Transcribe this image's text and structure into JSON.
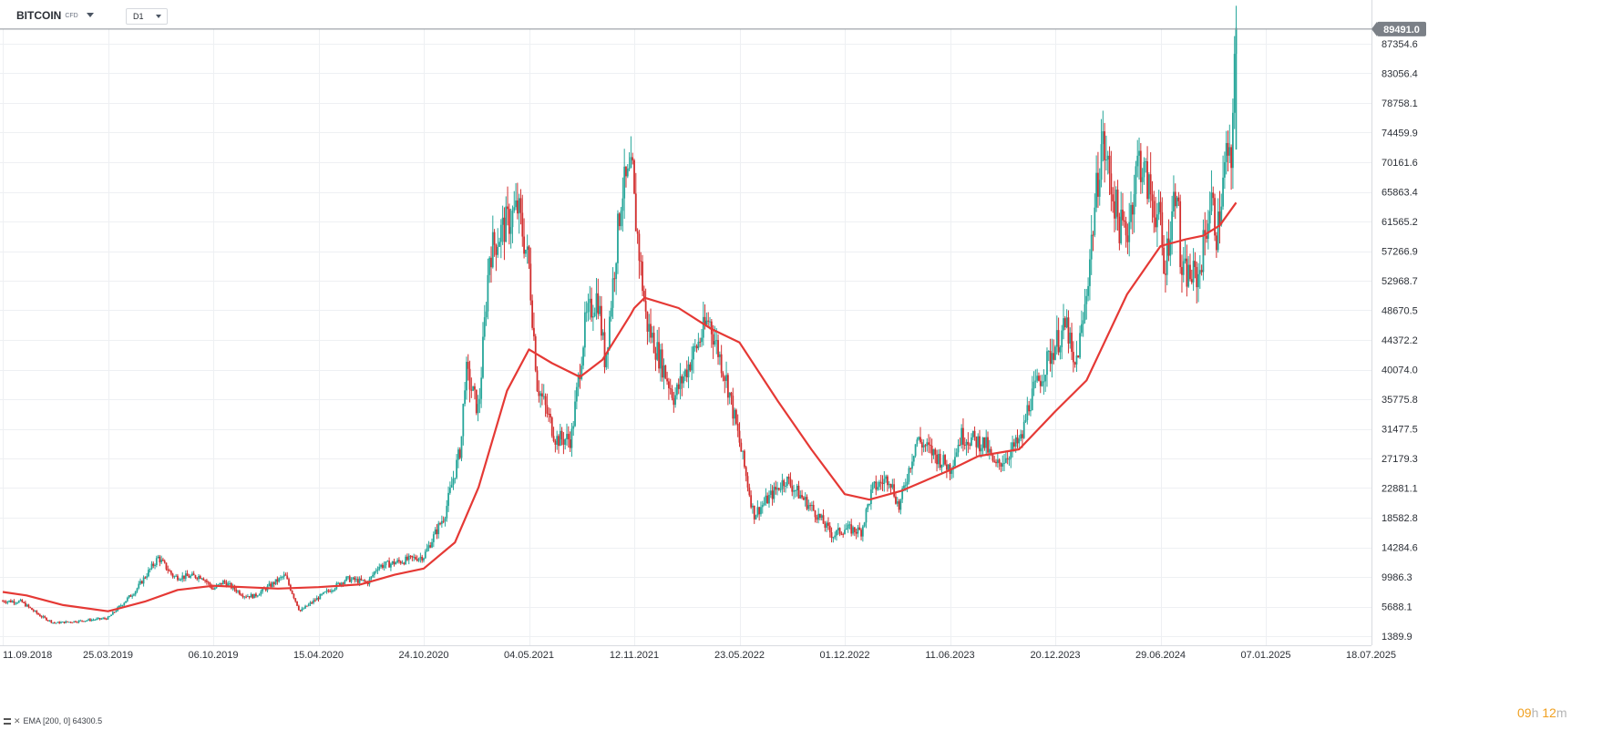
{
  "header": {
    "symbol": "BITCOIN",
    "symbol_tag": "CFD",
    "timeframe": "D1"
  },
  "indicator": {
    "label": "EMA [200, 0] 64300.5"
  },
  "countdown": {
    "hours": "09",
    "hours_unit": "h",
    "minutes": "12",
    "minutes_unit": "m"
  },
  "colors": {
    "up": "#26a69a",
    "down": "#d32f2f",
    "ema": "#e53935",
    "price_tag": "#7b8087",
    "grid": "#eef0f3"
  },
  "chart_data": {
    "type": "candlestick",
    "title": "",
    "grid": true,
    "ylim": [
      1389.9,
      91000
    ],
    "y_ticks": [
      "87354.6",
      "83056.4",
      "78758.1",
      "74459.9",
      "70161.6",
      "65863.4",
      "61565.2",
      "57266.9",
      "52968.7",
      "48670.5",
      "44372.2",
      "40074.0",
      "35775.8",
      "31477.5",
      "27179.3",
      "22881.1",
      "18582.8",
      "14284.6",
      "9986.3",
      "5688.1",
      "1389.9"
    ],
    "x_ticks": [
      "11.09.2018",
      "25.03.2019",
      "06.10.2019",
      "15.04.2020",
      "24.10.2020",
      "04.05.2021",
      "12.11.2021",
      "23.05.2022",
      "01.12.2022",
      "11.06.2023",
      "20.12.2023",
      "29.06.2024",
      "07.01.2025",
      "18.07.2025"
    ],
    "last_price": "89491.0",
    "price_path": [
      [
        "11.09.2018",
        6500
      ],
      [
        "15.10.2018",
        6400
      ],
      [
        "20.11.2018",
        4300
      ],
      [
        "15.12.2018",
        3300
      ],
      [
        "25.01.2019",
        3550
      ],
      [
        "25.03.2019",
        4000
      ],
      [
        "15.05.2019",
        8000
      ],
      [
        "26.06.2019",
        12800
      ],
      [
        "25.07.2019",
        10000
      ],
      [
        "15.09.2019",
        10100
      ],
      [
        "06.10.2019",
        8200
      ],
      [
        "25.10.2019",
        9300
      ],
      [
        "01.12.2019",
        7300
      ],
      [
        "20.12.2019",
        7200
      ],
      [
        "14.02.2020",
        10200
      ],
      [
        "12.03.2020",
        5000
      ],
      [
        "15.04.2020",
        7000
      ],
      [
        "05.06.2020",
        9700
      ],
      [
        "15.07.2020",
        9200
      ],
      [
        "01.08.2020",
        11500
      ],
      [
        "24.10.2020",
        13000
      ],
      [
        "01.12.2020",
        19000
      ],
      [
        "31.12.2020",
        29000
      ],
      [
        "08.01.2021",
        40000
      ],
      [
        "01.02.2021",
        34000
      ],
      [
        "21.02.2021",
        57000
      ],
      [
        "13.03.2021",
        60000
      ],
      [
        "14.04.2021",
        63500
      ],
      [
        "04.05.2021",
        55000
      ],
      [
        "19.05.2021",
        38000
      ],
      [
        "22.06.2021",
        30000
      ],
      [
        "20.07.2021",
        30000
      ],
      [
        "15.08.2021",
        47000
      ],
      [
        "06.09.2021",
        51000
      ],
      [
        "20.09.2021",
        41000
      ],
      [
        "20.10.2021",
        66000
      ],
      [
        "10.11.2021",
        68500
      ],
      [
        "12.11.2021",
        64000
      ],
      [
        "04.12.2021",
        47000
      ],
      [
        "24.01.2022",
        36000
      ],
      [
        "28.03.2022",
        47500
      ],
      [
        "01.05.2022",
        38000
      ],
      [
        "23.05.2022",
        29500
      ],
      [
        "18.06.2022",
        19000
      ],
      [
        "15.08.2022",
        24200
      ],
      [
        "10.10.2022",
        19200
      ],
      [
        "09.11.2022",
        16000
      ],
      [
        "01.12.2022",
        17000
      ],
      [
        "31.12.2022",
        16600
      ],
      [
        "20.01.2023",
        22700
      ],
      [
        "20.02.2023",
        24500
      ],
      [
        "10.03.2023",
        20000
      ],
      [
        "11.04.2023",
        30000
      ],
      [
        "11.06.2023",
        25800
      ],
      [
        "01.07.2023",
        30500
      ],
      [
        "15.08.2023",
        29200
      ],
      [
        "01.09.2023",
        25800
      ],
      [
        "20.10.2023",
        30000
      ],
      [
        "01.11.2023",
        35000
      ],
      [
        "20.12.2023",
        43800
      ],
      [
        "11.01.2024",
        46500
      ],
      [
        "23.01.2024",
        39500
      ],
      [
        "10.02.2024",
        47500
      ],
      [
        "28.02.2024",
        62000
      ],
      [
        "14.03.2024",
        73500
      ],
      [
        "15.04.2024",
        61000
      ],
      [
        "29.04.2024",
        60000
      ],
      [
        "20.05.2024",
        71000
      ],
      [
        "29.06.2024",
        61000
      ],
      [
        "05.07.2024",
        54000
      ],
      [
        "29.07.2024",
        68000
      ],
      [
        "05.08.2024",
        54000
      ],
      [
        "06.09.2024",
        53500
      ],
      [
        "29.09.2024",
        65000
      ],
      [
        "10.10.2024",
        59500
      ],
      [
        "29.10.2024",
        72300
      ],
      [
        "05.11.2024",
        67500
      ],
      [
        "11.11.2024",
        88500
      ],
      [
        "14.11.2024",
        89491
      ]
    ],
    "series": [
      {
        "name": "EMA [200, 0]",
        "points": [
          [
            "11.09.2018",
            7800
          ],
          [
            "25.10.2018",
            7300
          ],
          [
            "01.01.2019",
            5900
          ],
          [
            "25.03.2019",
            5000
          ],
          [
            "01.06.2019",
            6400
          ],
          [
            "01.08.2019",
            8100
          ],
          [
            "06.10.2019",
            8700
          ],
          [
            "01.12.2019",
            8500
          ],
          [
            "01.02.2020",
            8300
          ],
          [
            "15.04.2020",
            8500
          ],
          [
            "01.07.2020",
            8900
          ],
          [
            "01.09.2020",
            10300
          ],
          [
            "24.10.2020",
            11200
          ],
          [
            "20.12.2020",
            15000
          ],
          [
            "01.02.2021",
            23000
          ],
          [
            "25.03.2021",
            37000
          ],
          [
            "04.05.2021",
            43000
          ],
          [
            "15.06.2021",
            41000
          ],
          [
            "05.08.2021",
            39000
          ],
          [
            "15.09.2021",
            41500
          ],
          [
            "05.11.2021",
            48000
          ],
          [
            "12.11.2021",
            49000
          ],
          [
            "01.12.2021",
            50500
          ],
          [
            "01.02.2022",
            49000
          ],
          [
            "01.04.2022",
            46000
          ],
          [
            "23.05.2022",
            44000
          ],
          [
            "01.08.2022",
            35500
          ],
          [
            "01.10.2022",
            28500
          ],
          [
            "01.12.2022",
            22000
          ],
          [
            "15.01.2023",
            21200
          ],
          [
            "15.03.2023",
            22500
          ],
          [
            "11.06.2023",
            25500
          ],
          [
            "01.08.2023",
            27500
          ],
          [
            "15.10.2023",
            28500
          ],
          [
            "20.12.2023",
            34000
          ],
          [
            "15.02.2024",
            38500
          ],
          [
            "29.04.2024",
            51000
          ],
          [
            "29.06.2024",
            58000
          ],
          [
            "15.08.2024",
            59000
          ],
          [
            "15.09.2024",
            59500
          ],
          [
            "15.10.2024",
            61000
          ],
          [
            "14.11.2024",
            64300
          ]
        ]
      }
    ]
  }
}
